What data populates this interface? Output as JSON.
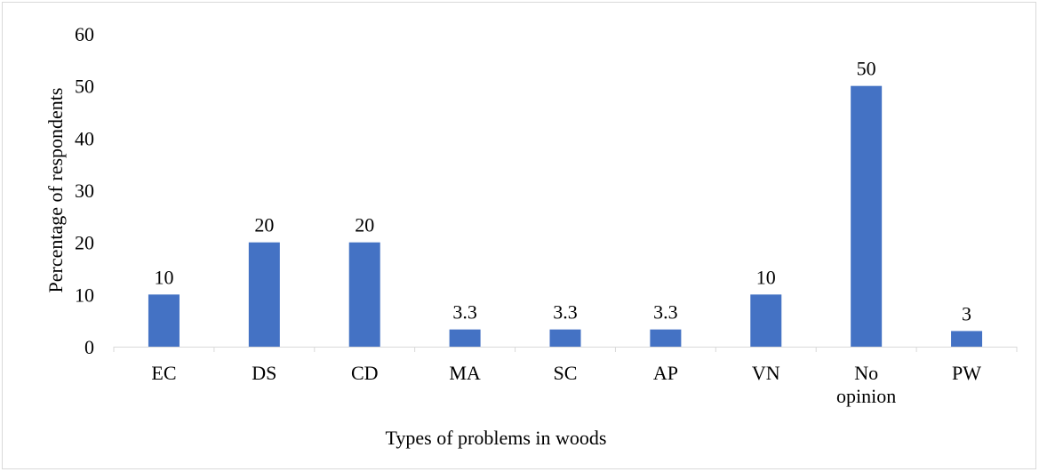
{
  "chart_data": {
    "type": "bar",
    "categories": [
      "EC",
      "DS",
      "CD",
      "MA",
      "SC",
      "AP",
      "VN",
      "No opinion",
      "PW"
    ],
    "category_lines": [
      [
        "EC"
      ],
      [
        "DS"
      ],
      [
        "CD"
      ],
      [
        "MA"
      ],
      [
        "SC"
      ],
      [
        "AP"
      ],
      [
        "VN"
      ],
      [
        "No",
        "opinion"
      ],
      [
        "PW"
      ]
    ],
    "values": [
      10,
      20,
      20,
      3.3,
      3.3,
      3.3,
      10,
      50,
      3
    ],
    "data_labels": [
      "10",
      "20",
      "20",
      "3.3",
      "3.3",
      "3.3",
      "10",
      "50",
      "3"
    ],
    "xlabel": "Types of problems in woods",
    "ylabel": "Percentage of respondents",
    "ylim": [
      0,
      60
    ],
    "yticks": [
      0,
      10,
      20,
      30,
      40,
      50,
      60
    ],
    "grid": false,
    "legend": "none",
    "bar_color": "#4472c4"
  }
}
